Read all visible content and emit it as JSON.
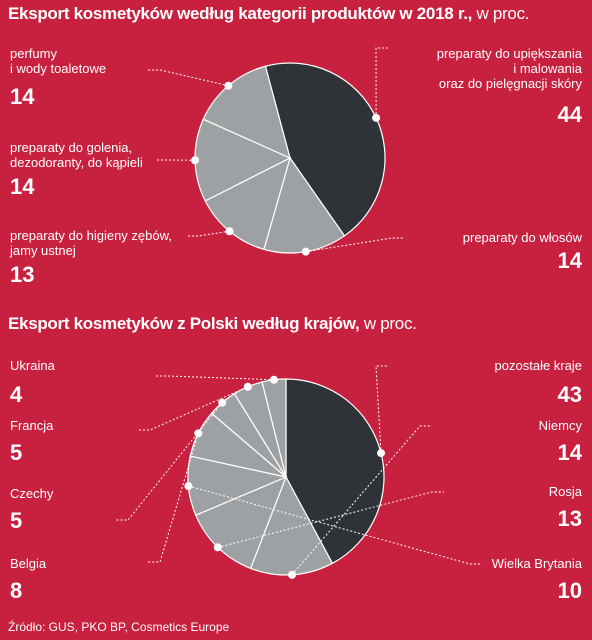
{
  "chart_data": [
    {
      "type": "pie",
      "title": "Eksport kosmetyków według kategorii produktów w 2018 r.,",
      "unit": "w proc.",
      "slices": [
        {
          "label": "preparaty do upiększania\ni malowania\noraz do pielęgnacji skóry",
          "value": 44,
          "value_label": "44",
          "color": "#2f3337"
        },
        {
          "label": "preparaty do włosów",
          "value": 14,
          "value_label": "14",
          "color": "#9ea1a3"
        },
        {
          "label": "preparaty do higieny zębów,\njamy ustnej",
          "value": 13,
          "value_label": "13",
          "color": "#9ea1a3"
        },
        {
          "label": "preparaty do golenia,\ndezodoranty, do kąpieli",
          "value": 14,
          "value_label": "14",
          "color": "#9ea1a3"
        },
        {
          "label": "perfumy\ni wody toaletowe",
          "value": 14,
          "value_label": "14",
          "color": "#9ea1a3"
        }
      ]
    },
    {
      "type": "pie",
      "title": "Eksport kosmetyków z Polski według krajów,",
      "unit": "w proc.",
      "slices": [
        {
          "label": "pozostałe kraje",
          "value": 43,
          "value_label": "43",
          "color": "#2f3337"
        },
        {
          "label": "Niemcy",
          "value": 14,
          "value_label": "14",
          "color": "#9ea1a3"
        },
        {
          "label": "Rosja",
          "value": 13,
          "value_label": "13",
          "color": "#9ea1a3"
        },
        {
          "label": "Wielka Brytania",
          "value": 10,
          "value_label": "10",
          "color": "#9ea1a3"
        },
        {
          "label": "Belgia",
          "value": 8,
          "value_label": "8",
          "color": "#9ea1a3"
        },
        {
          "label": "Czechy",
          "value": 5,
          "value_label": "5",
          "color": "#9ea1a3"
        },
        {
          "label": "Francja",
          "value": 5,
          "value_label": "5",
          "color": "#9ea1a3"
        },
        {
          "label": "Ukraina",
          "value": 4,
          "value_label": "4",
          "color": "#9ea1a3"
        }
      ]
    }
  ],
  "source": "Źródło: GUS, PKO BP, Cosmetics Europe"
}
